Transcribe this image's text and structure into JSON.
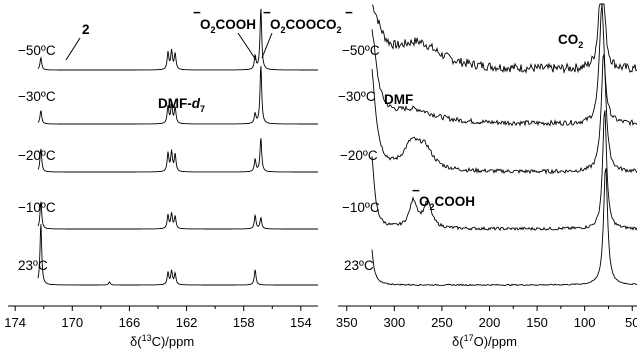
{
  "chart_data": [
    {
      "type": "line",
      "title": "",
      "xlabel_main": "δ(",
      "xlabel_sup": "13",
      "xlabel_tail": "C)/ppm",
      "xlim": [
        174.5,
        152.8
      ],
      "x_ticks": [
        174,
        170,
        166,
        162,
        158,
        154
      ],
      "x_tick_labels": [
        "174",
        "170",
        "166",
        "162",
        "158",
        "154"
      ],
      "series": [
        {
          "name": "−50ºC",
          "peaks": [
            {
              "x": 172.2,
              "h": 0.2
            },
            {
              "x": 163.3,
              "h": 0.28
            },
            {
              "x": 163.05,
              "h": 0.3
            },
            {
              "x": 162.8,
              "h": 0.26
            },
            {
              "x": 157.2,
              "h": 0.22
            },
            {
              "x": 156.8,
              "h": 1.0
            }
          ]
        },
        {
          "name": "−30ºC",
          "peaks": [
            {
              "x": 172.2,
              "h": 0.22
            },
            {
              "x": 163.3,
              "h": 0.28
            },
            {
              "x": 163.05,
              "h": 0.3
            },
            {
              "x": 162.8,
              "h": 0.26
            },
            {
              "x": 157.2,
              "h": 0.16
            },
            {
              "x": 156.8,
              "h": 0.95
            }
          ]
        },
        {
          "name": "−20ºC",
          "peaks": [
            {
              "x": 172.2,
              "h": 0.38
            },
            {
              "x": 163.3,
              "h": 0.3
            },
            {
              "x": 163.05,
              "h": 0.32
            },
            {
              "x": 162.8,
              "h": 0.28
            },
            {
              "x": 157.2,
              "h": 0.2
            },
            {
              "x": 156.8,
              "h": 0.55
            }
          ]
        },
        {
          "name": "−10ºC",
          "peaks": [
            {
              "x": 172.2,
              "h": 0.45
            },
            {
              "x": 163.3,
              "h": 0.22
            },
            {
              "x": 163.05,
              "h": 0.24
            },
            {
              "x": 162.8,
              "h": 0.2
            },
            {
              "x": 157.2,
              "h": 0.22
            },
            {
              "x": 156.8,
              "h": 0.18
            }
          ]
        },
        {
          "name": "23ºC",
          "peaks": [
            {
              "x": 172.2,
              "h": 1.0
            },
            {
              "x": 167.4,
              "h": 0.05
            },
            {
              "x": 163.3,
              "h": 0.2
            },
            {
              "x": 163.05,
              "h": 0.22
            },
            {
              "x": 162.8,
              "h": 0.18
            },
            {
              "x": 157.2,
              "h": 0.25
            }
          ]
        }
      ],
      "annotations": {
        "compound_2": "2",
        "dmf_d7": "DMF-",
        "dmf_d7_sub": "d",
        "dmf_d7_sub2": "7",
        "o2cooh": "O",
        "o2cooh_sub": "2",
        "o2cooh_tail": "COOH",
        "o2coooco2": "O",
        "o2coooco2_sub": "2",
        "o2coooco2_mid": "COOCO",
        "o2coooco2_sub2": "2",
        "minus": "−"
      }
    },
    {
      "type": "line",
      "title": "",
      "xlabel_main": "δ(",
      "xlabel_sup": "17",
      "xlabel_tail": "O)/ppm",
      "xlim": [
        355,
        45
      ],
      "x_ticks": [
        350,
        300,
        250,
        200,
        150,
        100,
        50
      ],
      "x_tick_labels": [
        "350",
        "300",
        "250",
        "200",
        "150",
        "100",
        "50"
      ],
      "series": [
        {
          "name": "−50ºC",
          "peaks": [
            {
              "x": 325,
              "w": 12,
              "h": 1.0
            },
            {
              "x": 275,
              "w": 28,
              "h": 0.42
            },
            {
              "x": 82,
              "w": 3,
              "h": 2.0
            }
          ]
        },
        {
          "name": "−30ºC",
          "peaks": [
            {
              "x": 325,
              "w": 7,
              "h": 1.6
            },
            {
              "x": 280,
              "w": 28,
              "h": 0.22
            },
            {
              "x": 82,
              "w": 3,
              "h": 2.0
            }
          ]
        },
        {
          "name": "−20ºC",
          "peaks": [
            {
              "x": 325,
              "w": 6,
              "h": 1.8
            },
            {
              "x": 282,
              "w": 10,
              "h": 0.4
            },
            {
              "x": 268,
              "w": 10,
              "h": 0.34
            },
            {
              "x": 80,
              "w": 3,
              "h": 2.0
            }
          ]
        },
        {
          "name": "−10ºC",
          "peaks": [
            {
              "x": 325,
              "w": 4,
              "h": 1.4
            },
            {
              "x": 280,
              "w": 5,
              "h": 0.45
            },
            {
              "x": 265,
              "w": 5,
              "h": 0.42
            },
            {
              "x": 79,
              "w": 2.5,
              "h": 2.0
            }
          ]
        },
        {
          "name": "23ºC",
          "peaks": [
            {
              "x": 325,
              "w": 3,
              "h": 0.75
            },
            {
              "x": 78,
              "w": 2.5,
              "h": 2.0
            }
          ]
        }
      ],
      "annotations": {
        "co2": "CO",
        "co2_sub": "2",
        "dmf": "DMF",
        "o2cooh": "O",
        "o2cooh_sub": "2",
        "o2cooh_tail": "COOH",
        "minus": "−"
      }
    }
  ]
}
